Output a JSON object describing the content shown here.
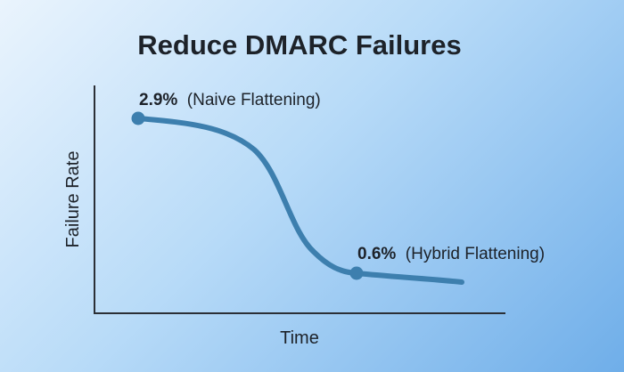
{
  "chart_data": {
    "type": "line",
    "title": "Reduce DMARC Failures",
    "xlabel": "Time",
    "ylabel": "Failure Rate",
    "grid": false,
    "legend": "none",
    "series": [
      {
        "color": "#3d7fae",
        "points": [
          {
            "value": 2.9
          },
          {
            "value": 0.6
          }
        ]
      }
    ],
    "annotations": [
      {
        "value": "2.9%",
        "label": "(Naive Flattening)"
      },
      {
        "value": "0.6%",
        "label": "(Hybrid Flattening)"
      }
    ]
  }
}
